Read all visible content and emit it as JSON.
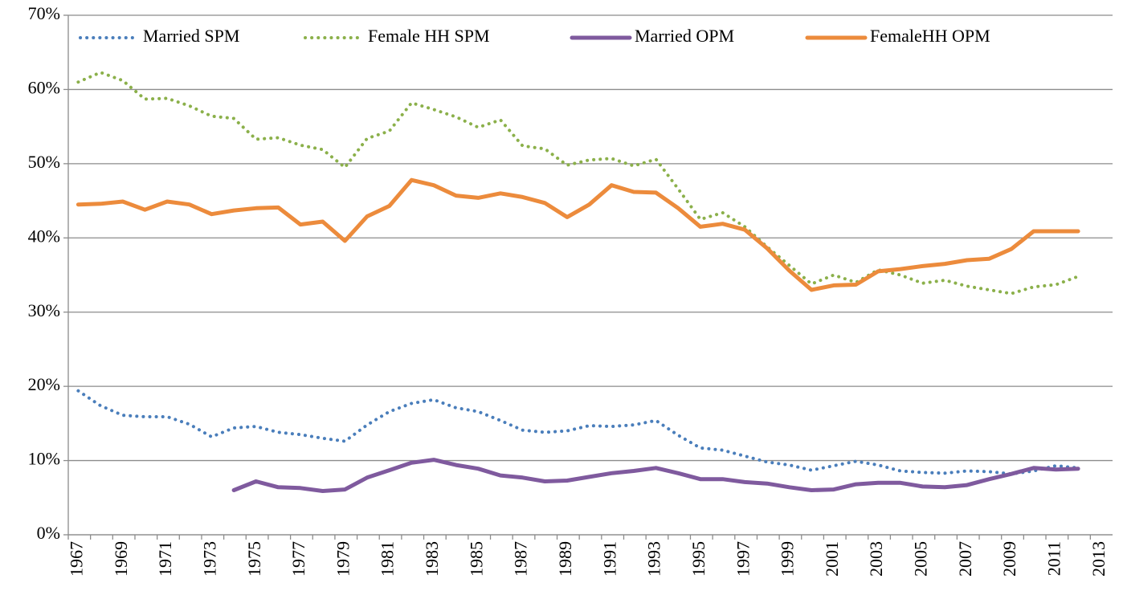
{
  "chart_data": {
    "type": "line",
    "categories": [
      "1967",
      null,
      "1969",
      null,
      "1971",
      null,
      "1973",
      null,
      "1975",
      null,
      "1977",
      null,
      "1979",
      null,
      "1981",
      null,
      "1983",
      null,
      "1985",
      null,
      "1987",
      null,
      "1989",
      null,
      "1991",
      null,
      "1993",
      null,
      "1995",
      null,
      "1997",
      null,
      "1999",
      null,
      "2001",
      null,
      "2003",
      null,
      "2005",
      null,
      "2007",
      null,
      "2009",
      null,
      "2011",
      null,
      "2013"
    ],
    "series": [
      {
        "name": "Married SPM",
        "color": "#4a7ebb",
        "style": "dotted",
        "values": [
          19.4,
          17.4,
          16.1,
          15.9,
          15.9,
          14.9,
          13.2,
          14.4,
          14.6,
          13.8,
          13.5,
          13.0,
          12.6,
          14.8,
          16.6,
          17.7,
          18.2,
          17.1,
          16.6,
          15.4,
          14.1,
          13.8,
          14.0,
          14.7,
          14.6,
          14.8,
          15.4,
          13.4,
          11.7,
          11.4,
          10.6,
          9.8,
          9.4,
          8.7,
          9.3,
          9.9,
          9.4,
          8.6,
          8.4,
          8.3,
          8.6,
          8.5,
          8.2,
          8.6,
          9.3,
          9.0,
          null
        ]
      },
      {
        "name": "Female HH SPM",
        "color": "#8bb04a",
        "style": "dotted",
        "values": [
          61.0,
          62.3,
          61.2,
          58.7,
          58.8,
          57.8,
          56.4,
          56.1,
          53.3,
          53.5,
          52.5,
          51.9,
          49.5,
          53.4,
          54.4,
          58.2,
          57.3,
          56.3,
          54.9,
          55.9,
          52.4,
          52.0,
          49.8,
          50.5,
          50.7,
          49.7,
          50.6,
          46.6,
          42.5,
          43.4,
          41.5,
          38.8,
          36.3,
          33.8,
          35.0,
          34.0,
          35.7,
          35.0,
          33.9,
          34.3,
          33.5,
          33.0,
          32.5,
          33.4,
          33.7,
          34.8,
          null
        ]
      },
      {
        "name": "Married OPM",
        "color": "#7f5a9e",
        "style": "solid",
        "values": [
          null,
          null,
          null,
          null,
          null,
          null,
          null,
          6.0,
          7.2,
          6.4,
          6.3,
          5.9,
          6.1,
          7.7,
          8.7,
          9.7,
          10.1,
          9.4,
          8.9,
          8.0,
          7.7,
          7.2,
          7.3,
          7.8,
          8.3,
          8.6,
          9.0,
          8.3,
          7.5,
          7.5,
          7.1,
          6.9,
          6.4,
          6.0,
          6.1,
          6.8,
          7.0,
          7.0,
          6.5,
          6.4,
          6.7,
          7.5,
          8.2,
          9.0,
          8.8,
          8.9,
          null
        ]
      },
      {
        "name": "FemaleHH OPM",
        "color": "#ec8b3c",
        "style": "solid",
        "values": [
          44.5,
          44.6,
          44.9,
          43.8,
          44.9,
          44.5,
          43.2,
          43.7,
          44.0,
          44.1,
          41.8,
          42.2,
          39.6,
          42.9,
          44.3,
          47.8,
          47.1,
          45.7,
          45.4,
          46.0,
          45.5,
          44.7,
          42.8,
          44.5,
          47.1,
          46.2,
          46.1,
          44.0,
          41.5,
          41.9,
          41.1,
          38.6,
          35.6,
          33.0,
          33.6,
          33.7,
          35.5,
          35.8,
          36.2,
          36.5,
          37.0,
          37.2,
          38.5,
          40.9,
          40.9,
          40.9,
          null
        ]
      }
    ],
    "ylim": [
      0,
      70
    ],
    "yticks": [
      {
        "value": 0,
        "label": "0%"
      },
      {
        "value": 10,
        "label": "10%"
      },
      {
        "value": 20,
        "label": "20%"
      },
      {
        "value": 30,
        "label": "30%"
      },
      {
        "value": 40,
        "label": "40%"
      },
      {
        "value": 50,
        "label": "50%"
      },
      {
        "value": 60,
        "label": "60%"
      },
      {
        "value": 70,
        "label": "70%"
      }
    ],
    "grid": true,
    "legend": "top"
  }
}
